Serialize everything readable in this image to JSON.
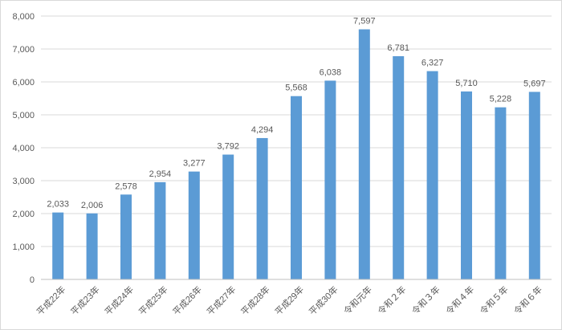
{
  "chart_data": {
    "type": "bar",
    "categories": [
      "平成22年",
      "平成23年",
      "平成24年",
      "平成25年",
      "平成26年",
      "平成27年",
      "平成28年",
      "平成29年",
      "平成30年",
      "令和元年",
      "令和２年",
      "令和３年",
      "令和４年",
      "令和５年",
      "令和６年"
    ],
    "values": [
      2033,
      2006,
      2578,
      2954,
      3277,
      3792,
      4294,
      5568,
      6038,
      7597,
      6781,
      6327,
      5710,
      5228,
      5697
    ],
    "data_labels": [
      "2,033",
      "2,006",
      "2,578",
      "2,954",
      "3,277",
      "3,792",
      "4,294",
      "5,568",
      "6,038",
      "7,597",
      "6,781",
      "6,327",
      "5,710",
      "5,228",
      "5,697"
    ],
    "y_ticks": [
      0,
      1000,
      2000,
      3000,
      4000,
      5000,
      6000,
      7000,
      8000
    ],
    "y_tick_labels": [
      "0",
      "1,000",
      "2,000",
      "3,000",
      "4,000",
      "5,000",
      "6,000",
      "7,000",
      "8,000"
    ],
    "ylim": [
      0,
      8000
    ],
    "title": "",
    "xlabel": "",
    "ylabel": "",
    "grid": true,
    "legend": "none",
    "bar_color": "#5b9bd5"
  }
}
